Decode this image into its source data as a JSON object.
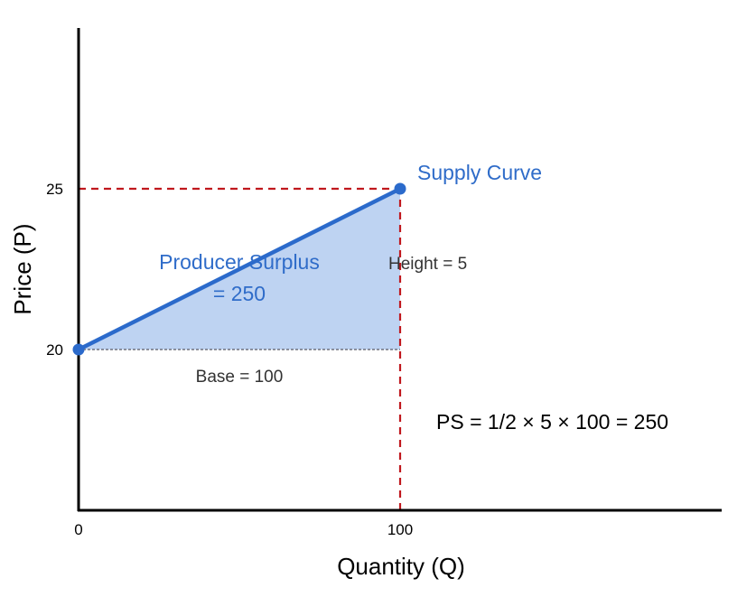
{
  "colors": {
    "supply": "#2b6acb",
    "fill": "#bed3f2",
    "guide": "#c0181e",
    "axis": "#000000",
    "text": "#333333",
    "accent_text": "#2f6cc9"
  },
  "chart_data": {
    "type": "line",
    "xlabel": "Quantity (Q)",
    "ylabel": "Price (P)",
    "xticks": [
      0,
      100
    ],
    "yticks": [
      20,
      25
    ],
    "xlim": [
      0,
      200
    ],
    "ylim": [
      15,
      30
    ],
    "grid": false,
    "series": [
      {
        "name": "Supply Curve",
        "points": [
          [
            0,
            20
          ],
          [
            100,
            25
          ]
        ]
      }
    ],
    "shaded_region": {
      "name": "Producer Surplus",
      "vertices": [
        [
          0,
          20
        ],
        [
          100,
          25
        ],
        [
          100,
          20
        ]
      ]
    },
    "guides": [
      {
        "from": [
          0,
          25
        ],
        "to": [
          100,
          25
        ]
      },
      {
        "from": [
          100,
          15
        ],
        "to": [
          100,
          25
        ]
      }
    ],
    "annotations": {
      "supply_label": "Supply Curve",
      "surplus_line1": "Producer Surplus",
      "surplus_line2": "= 250",
      "height": "Height = 5",
      "base": "Base = 100",
      "formula": "PS = 1/2 × 5 × 100 = 250"
    }
  }
}
